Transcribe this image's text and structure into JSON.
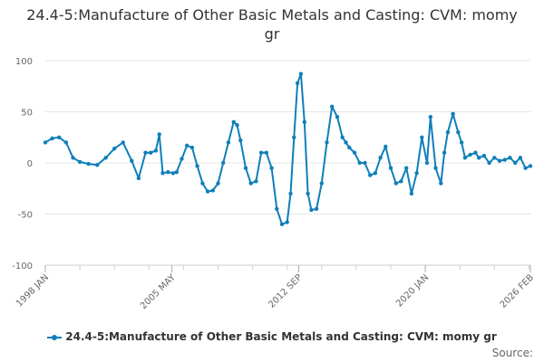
{
  "chart_data": {
    "type": "line",
    "title": "24.4-5:Manufacture of Other Basic Metals and Casting: CVM: momy gr",
    "xlabel": "",
    "ylabel": "",
    "ylim": [
      -100,
      100
    ],
    "yticks": [
      100,
      50,
      0,
      -50,
      -100
    ],
    "x_range": [
      1998.0,
      2026.083
    ],
    "xtick_labels": [
      {
        "label": "1998 JAN",
        "t": 1998.0
      },
      {
        "label": "2005 MAY",
        "t": 2005.33
      },
      {
        "label": "2012 SEP",
        "t": 2012.67
      },
      {
        "label": "2020 JAN",
        "t": 2020.0
      },
      {
        "label": "2026 FEB",
        "t": 2026.083
      }
    ],
    "grid": true,
    "legend_position": "bottom",
    "series": [
      {
        "name": "24.4-5:Manufacture of Other Basic Metals and Casting: CVM: momy gr",
        "color": "#0f7fb9",
        "x": [
          1998.0,
          1998.4,
          1998.8,
          1999.2,
          1999.6,
          2000.0,
          2000.5,
          2001.0,
          2001.5,
          2002.0,
          2002.5,
          2003.0,
          2003.4,
          2003.8,
          2004.1,
          2004.4,
          2004.6,
          2004.8,
          2005.1,
          2005.4,
          2005.6,
          2005.9,
          2006.2,
          2006.5,
          2006.8,
          2007.1,
          2007.4,
          2007.7,
          2008.0,
          2008.3,
          2008.6,
          2008.9,
          2009.1,
          2009.3,
          2009.6,
          2009.9,
          2010.2,
          2010.5,
          2010.8,
          2011.1,
          2011.4,
          2011.7,
          2012.0,
          2012.2,
          2012.4,
          2012.6,
          2012.8,
          2013.0,
          2013.2,
          2013.4,
          2013.7,
          2014.0,
          2014.3,
          2014.6,
          2014.9,
          2015.2,
          2015.4,
          2015.6,
          2015.9,
          2016.2,
          2016.5,
          2016.8,
          2017.1,
          2017.4,
          2017.7,
          2018.0,
          2018.3,
          2018.6,
          2018.9,
          2019.2,
          2019.5,
          2019.8,
          2020.1,
          2020.3,
          2020.6,
          2020.9,
          2021.1,
          2021.3,
          2021.6,
          2021.9,
          2022.1,
          2022.3,
          2022.6,
          2022.9,
          2023.1,
          2023.4,
          2023.7,
          2024.0,
          2024.3,
          2024.6,
          2024.9,
          2025.2,
          2025.5,
          2025.8,
          2026.083
        ],
        "values": [
          20,
          24,
          25,
          20,
          5,
          1,
          -1,
          -2,
          5,
          14,
          20,
          2,
          -15,
          10,
          10,
          12,
          28,
          -10,
          -9,
          -10,
          -9,
          4,
          17,
          15,
          -3,
          -20,
          -28,
          -27,
          -20,
          0,
          20,
          40,
          37,
          22,
          -5,
          -20,
          -18,
          10,
          10,
          -5,
          -45,
          -60,
          -58,
          -30,
          25,
          78,
          87,
          40,
          -30,
          -46,
          -45,
          -20,
          20,
          55,
          45,
          25,
          20,
          15,
          10,
          0,
          0,
          -12,
          -10,
          5,
          16,
          -5,
          -20,
          -18,
          -5,
          -30,
          -10,
          25,
          0,
          45,
          -5,
          -20,
          10,
          30,
          48,
          30,
          20,
          5,
          8,
          10,
          5,
          7,
          0,
          5,
          2,
          3,
          5,
          0,
          5,
          -5,
          -3
        ]
      }
    ],
    "source_label": "Source:"
  }
}
